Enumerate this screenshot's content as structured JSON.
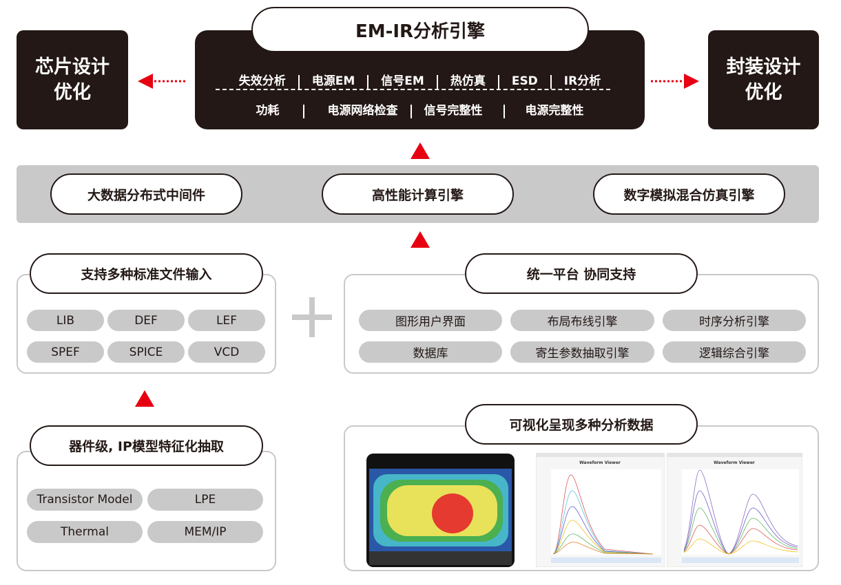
{
  "left_target": {
    "line1": "芯片设计",
    "line2": "优化"
  },
  "right_target": {
    "line1": "封装设计",
    "line2": "优化"
  },
  "engine": {
    "title": "EM-IR分析引擎",
    "row1": [
      "失效分析",
      "电源EM",
      "信号EM",
      "热仿真",
      "ESD",
      "IR分析"
    ],
    "row2": [
      "功耗",
      "电源网络检查",
      "信号完整性",
      "电源完整性"
    ]
  },
  "middleware": [
    "大数据分布式中间件",
    "高性能计算引擎",
    "数字模拟混合仿真引擎"
  ],
  "file_input": {
    "title": "支持多种标准文件输入",
    "items": [
      "LIB",
      "DEF",
      "LEF",
      "SPEF",
      "SPICE",
      "VCD"
    ]
  },
  "platform": {
    "title": "统一平台 协同支持",
    "items": [
      "图形用户界面",
      "布局布线引擎",
      "时序分析引擎",
      "数据库",
      "寄生参数抽取引擎",
      "逻辑综合引擎"
    ]
  },
  "extraction": {
    "title": "器件级, IP模型特征化抽取",
    "items": [
      "Transistor Model",
      "LPE",
      "Thermal",
      "MEM/IP"
    ]
  },
  "visualization": {
    "title": "可视化呈现多种分析数据",
    "viewer_title": "Waveform Viewer"
  },
  "colors": {
    "dark": "#231815",
    "arrow": "#e60012",
    "chip": "#c9c9ca",
    "band": "#c9c9ca"
  }
}
